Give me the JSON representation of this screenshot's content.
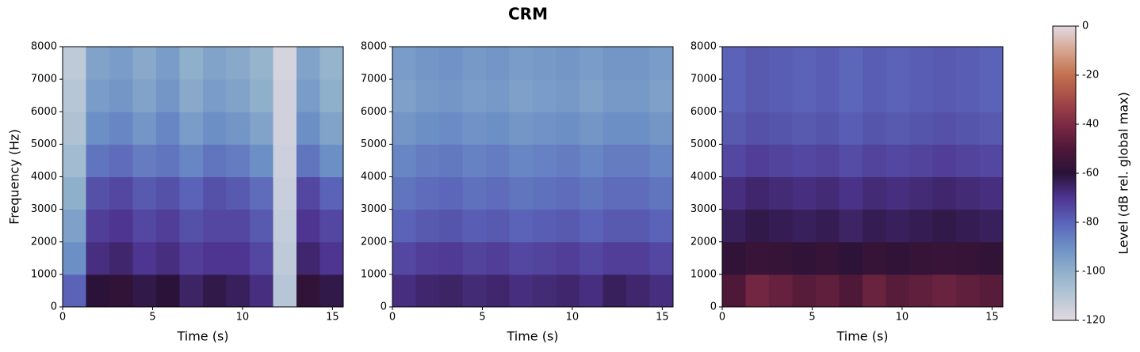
{
  "title": "CRM",
  "colorbar": {
    "label": "Level (dB rel. global max)",
    "zlim": [
      -120,
      0
    ],
    "zticks": [
      0,
      -20,
      -40,
      -60,
      -80,
      -100,
      -120
    ],
    "colorscale": [
      [
        -120,
        "#e2d9e2"
      ],
      [
        -110,
        "#b6c6d6"
      ],
      [
        -100,
        "#8fb0cb"
      ],
      [
        -90,
        "#6c8fc6"
      ],
      [
        -80,
        "#5a63b8"
      ],
      [
        -70,
        "#4e3591"
      ],
      [
        -60,
        "#2a1238"
      ],
      [
        -50,
        "#4e1838"
      ],
      [
        -40,
        "#7c2a44"
      ],
      [
        -30,
        "#a54a48"
      ],
      [
        -20,
        "#c2704f"
      ],
      [
        -10,
        "#d6a58e"
      ],
      [
        0,
        "#e2d9e2"
      ]
    ]
  },
  "chart_data": [
    {
      "type": "heatmap",
      "xlabel": "Time (s)",
      "ylabel": "Frequency (Hz)",
      "xlim": [
        0,
        15.6
      ],
      "ylim": [
        0,
        8000
      ],
      "xticks": [
        0,
        5,
        10,
        15
      ],
      "yticks": [
        0,
        1000,
        2000,
        3000,
        4000,
        5000,
        6000,
        7000,
        8000
      ],
      "xbins": [
        0,
        1.3,
        2.6,
        3.9,
        5.2,
        6.5,
        7.8,
        9.1,
        10.4,
        11.7,
        13.0,
        14.3,
        15.6
      ],
      "ybins": [
        0,
        1000,
        2000,
        3000,
        4000,
        5000,
        6000,
        7000,
        8000
      ],
      "z": [
        [
          -80,
          -60,
          -58,
          -62,
          -60,
          -65,
          -62,
          -64,
          -68,
          -110,
          -58,
          -62
        ],
        [
          -90,
          -68,
          -66,
          -70,
          -68,
          -72,
          -70,
          -70,
          -74,
          -112,
          -66,
          -70
        ],
        [
          -95,
          -72,
          -70,
          -74,
          -72,
          -76,
          -74,
          -74,
          -78,
          -113,
          -70,
          -74
        ],
        [
          -100,
          -76,
          -74,
          -78,
          -76,
          -80,
          -76,
          -78,
          -82,
          -114,
          -74,
          -80
        ],
        [
          -105,
          -84,
          -82,
          -86,
          -84,
          -88,
          -84,
          -86,
          -90,
          -115,
          -84,
          -90
        ],
        [
          -108,
          -90,
          -88,
          -92,
          -88,
          -94,
          -90,
          -92,
          -96,
          -116,
          -90,
          -96
        ],
        [
          -110,
          -94,
          -92,
          -96,
          -92,
          -98,
          -94,
          -96,
          -100,
          -116,
          -94,
          -100
        ],
        [
          -112,
          -96,
          -94,
          -98,
          -94,
          -100,
          -96,
          -98,
          -102,
          -117,
          -96,
          -102
        ]
      ]
    },
    {
      "type": "heatmap",
      "xlabel": "Time (s)",
      "xlim": [
        0,
        15.6
      ],
      "ylim": [
        0,
        8000
      ],
      "xticks": [
        0,
        5,
        10,
        15
      ],
      "yticks": [
        0,
        1000,
        2000,
        3000,
        4000,
        5000,
        6000,
        7000,
        8000
      ],
      "xbins": [
        0,
        1.3,
        2.6,
        3.9,
        5.2,
        6.5,
        7.8,
        9.1,
        10.4,
        11.7,
        13.0,
        14.3,
        15.6
      ],
      "ybins": [
        0,
        1000,
        2000,
        3000,
        4000,
        5000,
        6000,
        7000,
        8000
      ],
      "z": [
        [
          -68,
          -66,
          -65,
          -67,
          -66,
          -68,
          -67,
          -66,
          -68,
          -64,
          -66,
          -68
        ],
        [
          -74,
          -72,
          -71,
          -73,
          -72,
          -74,
          -73,
          -72,
          -74,
          -72,
          -72,
          -74
        ],
        [
          -80,
          -78,
          -77,
          -79,
          -78,
          -80,
          -79,
          -78,
          -80,
          -78,
          -78,
          -80
        ],
        [
          -84,
          -82,
          -81,
          -83,
          -82,
          -84,
          -83,
          -82,
          -84,
          -82,
          -82,
          -84
        ],
        [
          -88,
          -86,
          -85,
          -87,
          -86,
          -88,
          -87,
          -86,
          -88,
          -86,
          -86,
          -88
        ],
        [
          -92,
          -90,
          -89,
          -91,
          -90,
          -92,
          -91,
          -90,
          -92,
          -90,
          -90,
          -92
        ],
        [
          -95,
          -93,
          -92,
          -94,
          -93,
          -95,
          -94,
          -93,
          -95,
          -93,
          -93,
          -95
        ],
        [
          -94,
          -92,
          -91,
          -93,
          -92,
          -94,
          -93,
          -92,
          -94,
          -92,
          -92,
          -94
        ]
      ]
    },
    {
      "type": "heatmap",
      "xlabel": "Time (s)",
      "xlim": [
        0,
        15.6
      ],
      "ylim": [
        0,
        8000
      ],
      "xticks": [
        0,
        5,
        10,
        15
      ],
      "yticks": [
        0,
        1000,
        2000,
        3000,
        4000,
        5000,
        6000,
        7000,
        8000
      ],
      "xbins": [
        0,
        1.3,
        2.6,
        3.9,
        5.2,
        6.5,
        7.8,
        9.1,
        10.4,
        11.7,
        13.0,
        14.3,
        15.6
      ],
      "ybins": [
        0,
        1000,
        2000,
        3000,
        4000,
        5000,
        6000,
        7000,
        8000
      ],
      "z": [
        [
          -50,
          -42,
          -45,
          -48,
          -46,
          -50,
          -44,
          -48,
          -46,
          -44,
          -46,
          -48
        ],
        [
          -58,
          -56,
          -57,
          -58,
          -57,
          -59,
          -57,
          -58,
          -57,
          -56,
          -57,
          -58
        ],
        [
          -64,
          -62,
          -63,
          -64,
          -63,
          -65,
          -63,
          -64,
          -63,
          -62,
          -63,
          -64
        ],
        [
          -68,
          -66,
          -67,
          -68,
          -67,
          -69,
          -67,
          -68,
          -67,
          -66,
          -67,
          -68
        ],
        [
          -74,
          -72,
          -73,
          -74,
          -73,
          -75,
          -73,
          -74,
          -73,
          -72,
          -73,
          -74
        ],
        [
          -78,
          -76,
          -77,
          -78,
          -77,
          -79,
          -77,
          -78,
          -77,
          -76,
          -77,
          -78
        ],
        [
          -80,
          -78,
          -79,
          -80,
          -79,
          -81,
          -79,
          -80,
          -79,
          -78,
          -79,
          -80
        ],
        [
          -80,
          -78,
          -79,
          -80,
          -79,
          -81,
          -79,
          -80,
          -79,
          -78,
          -79,
          -80
        ]
      ]
    }
  ]
}
